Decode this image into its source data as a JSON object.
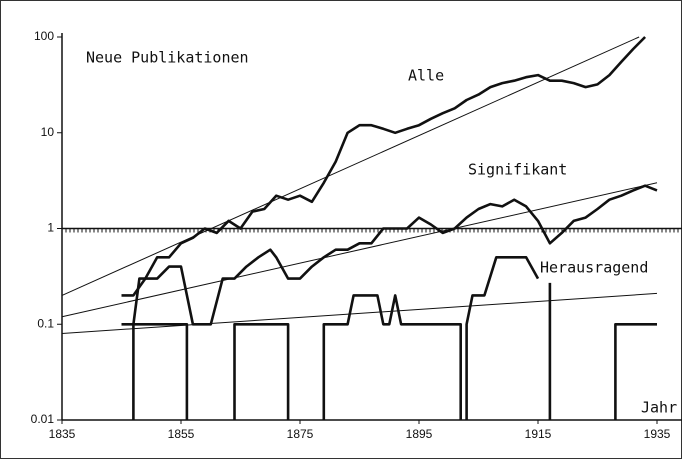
{
  "chart_data": {
    "type": "line",
    "title": "Neue Publikationen",
    "xlabel": "Jahr",
    "log_y": true,
    "ylim": [
      0.01,
      100
    ],
    "yticks": [
      100,
      10,
      1,
      0.1,
      0.01
    ],
    "xlim": [
      1835,
      1935
    ],
    "xticks": [
      1835,
      1855,
      1875,
      1895,
      1915,
      1935
    ],
    "reference_line": 1,
    "color": "#111111",
    "series": [
      {
        "name": "Alle",
        "x": [
          1845,
          1847,
          1849,
          1851,
          1853,
          1855,
          1857,
          1859,
          1861,
          1863,
          1865,
          1867,
          1869,
          1871,
          1873,
          1875,
          1877,
          1879,
          1881,
          1883,
          1885,
          1887,
          1889,
          1891,
          1893,
          1895,
          1897,
          1899,
          1901,
          1903,
          1905,
          1907,
          1909,
          1911,
          1913,
          1915,
          1917,
          1919,
          1921,
          1923,
          1925,
          1927,
          1929,
          1931,
          1933
        ],
        "values": [
          0.2,
          0.2,
          0.3,
          0.5,
          0.5,
          0.7,
          0.8,
          1.0,
          0.9,
          1.2,
          1.0,
          1.5,
          1.6,
          2.2,
          2.0,
          2.2,
          1.9,
          3.0,
          5.0,
          10,
          12,
          12,
          11,
          10,
          11,
          12,
          14,
          16,
          18,
          22,
          25,
          30,
          33,
          35,
          38,
          40,
          35,
          35,
          33,
          30,
          32,
          40,
          55,
          75,
          100
        ]
      },
      {
        "name": "Signifikant",
        "x": [
          1845,
          1847,
          1848,
          1851,
          1853,
          1855,
          1857,
          1860,
          1862,
          1864,
          1866,
          1868,
          1870,
          1871,
          1873,
          1875,
          1877,
          1879,
          1881,
          1883,
          1885,
          1887,
          1889,
          1891,
          1893,
          1895,
          1897,
          1899,
          1901,
          1903,
          1905,
          1907,
          1909,
          1911,
          1913,
          1915,
          1917,
          1919,
          1921,
          1923,
          1925,
          1927,
          1929,
          1931,
          1933,
          1935
        ],
        "values": [
          0.1,
          0.1,
          0.3,
          0.3,
          0.4,
          0.4,
          0.1,
          0.1,
          0.3,
          0.3,
          0.4,
          0.5,
          0.6,
          0.5,
          0.3,
          0.3,
          0.4,
          0.5,
          0.6,
          0.6,
          0.7,
          0.7,
          1.0,
          1.0,
          1.0,
          1.3,
          1.1,
          0.9,
          1.0,
          1.3,
          1.6,
          1.8,
          1.7,
          2.0,
          1.7,
          1.2,
          0.7,
          0.9,
          1.2,
          1.3,
          1.6,
          2.0,
          2.2,
          2.5,
          2.8,
          2.5
        ]
      },
      {
        "name": "Herausragend",
        "x": [
          1847,
          1847,
          1856,
          1856,
          null,
          1864,
          1864,
          1873,
          1873,
          null,
          1879,
          1879,
          1883,
          1884,
          1888,
          1889,
          1890,
          1891,
          1892,
          1902,
          1902,
          null,
          1903,
          1903,
          1904,
          1906,
          1908,
          1913,
          1915,
          null,
          1917,
          1917,
          null,
          1928,
          1928,
          1935
        ],
        "values": [
          0.01,
          0.1,
          0.1,
          0.01,
          null,
          0.01,
          0.1,
          0.1,
          0.01,
          null,
          0.01,
          0.1,
          0.1,
          0.2,
          0.2,
          0.1,
          0.1,
          0.2,
          0.1,
          0.1,
          0.01,
          null,
          0.01,
          0.1,
          0.2,
          0.2,
          0.5,
          0.5,
          0.3,
          null,
          0.01,
          0.27,
          null,
          0.01,
          0.1,
          0.1
        ]
      }
    ],
    "trends": [
      {
        "x": [
          1835,
          1932
        ],
        "values": [
          0.2,
          100
        ]
      },
      {
        "x": [
          1835,
          1935
        ],
        "values": [
          0.12,
          3
        ]
      },
      {
        "x": [
          1835,
          1935
        ],
        "values": [
          0.08,
          0.21
        ]
      }
    ]
  }
}
